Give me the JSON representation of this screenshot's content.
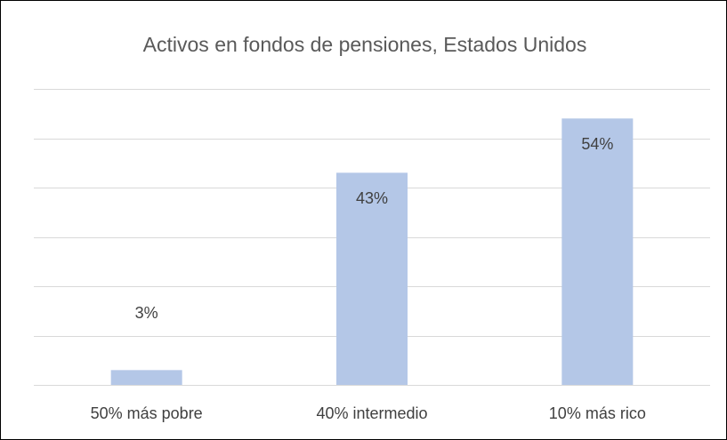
{
  "chart_data": {
    "type": "bar",
    "title": "Activos en fondos de pensiones, Estados Unidos",
    "categories": [
      "50% más pobre",
      "40% intermedio",
      "10% más rico"
    ],
    "values": [
      3,
      43,
      54
    ],
    "value_labels": [
      "3%",
      "43%",
      "54%"
    ],
    "color": "#b4c7e7",
    "ylim": [
      0,
      60
    ],
    "yticks": [
      0,
      10,
      20,
      30,
      40,
      50,
      60
    ],
    "grid": true
  }
}
